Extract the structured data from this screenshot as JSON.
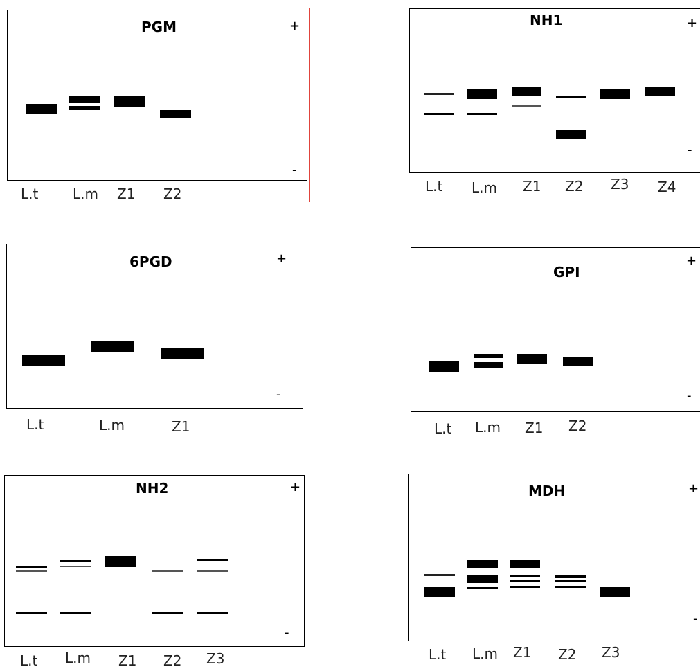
{
  "gels": [
    {
      "title": "PGM",
      "plus": "+",
      "minus": "-",
      "lanes": [
        "L.t",
        "L.m",
        "Z1",
        "Z2"
      ]
    },
    {
      "title": "NH1",
      "plus": "+",
      "minus": "-",
      "lanes": [
        "L.t",
        "L.m",
        "Z1",
        "Z2",
        "Z3",
        "Z4"
      ]
    },
    {
      "title": "6PGD",
      "plus": "+",
      "minus": "-",
      "lanes": [
        "L.t",
        "L.m",
        "Z1"
      ]
    },
    {
      "title": "GPI",
      "plus": "+",
      "minus": "-",
      "lanes": [
        "L.t",
        "L.m",
        "Z1",
        "Z2"
      ]
    },
    {
      "title": "NH2",
      "plus": "+",
      "minus": "-",
      "lanes": [
        "L.t",
        "L.m",
        "Z1",
        "Z2",
        "Z3"
      ]
    },
    {
      "title": "MDH",
      "plus": "+",
      "minus": "-",
      "lanes": [
        "L.t",
        "L.m",
        "Z1",
        "Z2",
        "Z3"
      ]
    }
  ]
}
